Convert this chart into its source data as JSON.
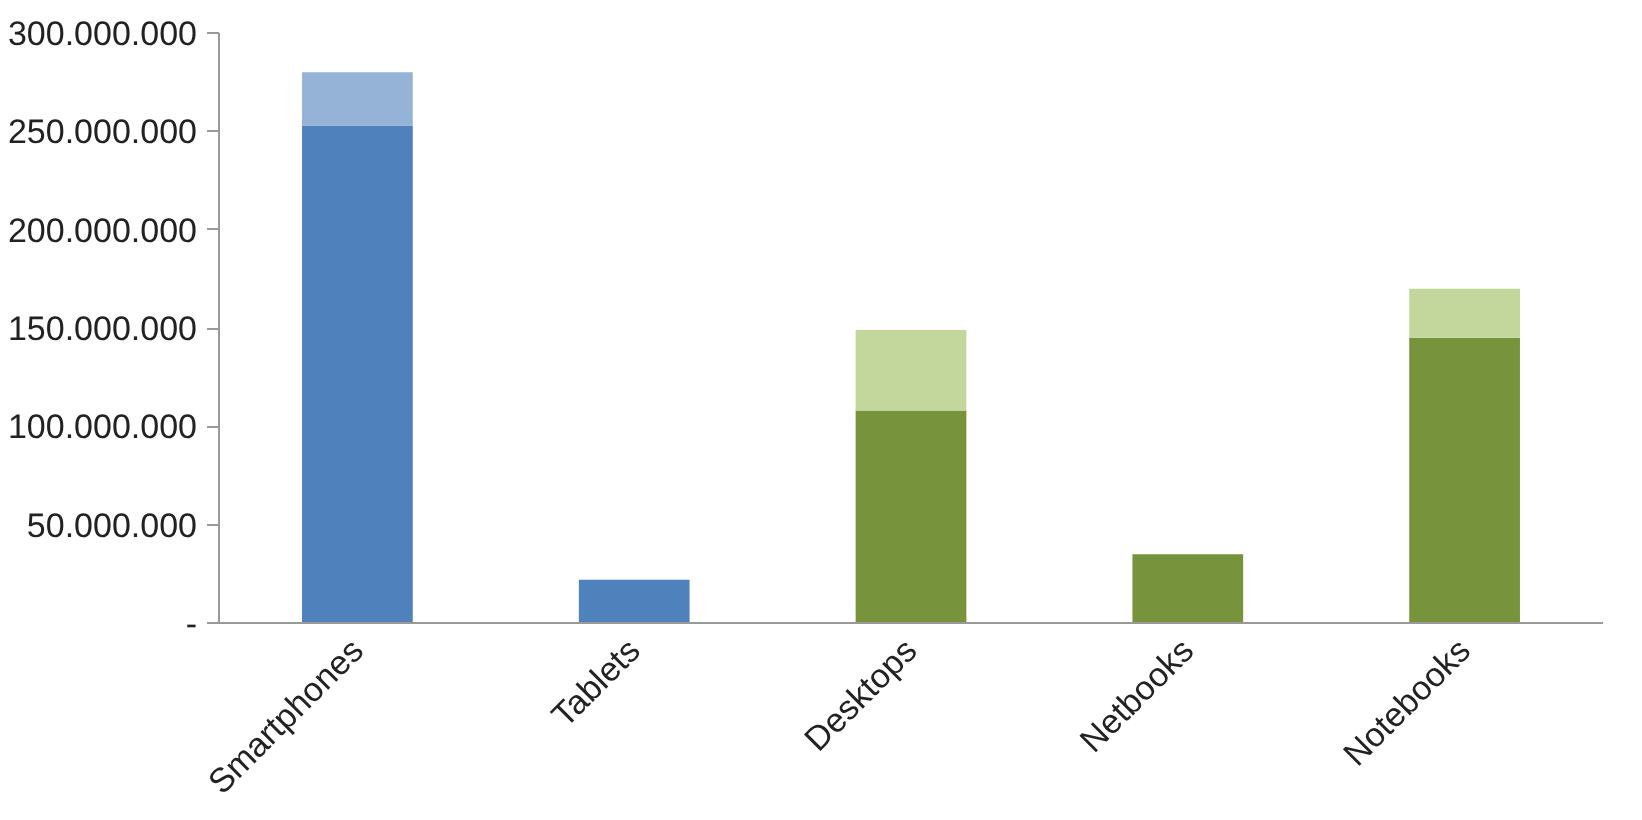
{
  "chart_data": {
    "type": "bar",
    "stacked": true,
    "categories": [
      "Smartphones",
      "Tablets",
      "Desktops",
      "Netbooks",
      "Notebooks"
    ],
    "series": [
      {
        "colors": [
          "#4f81bd",
          "#4f81bd",
          "#77933c",
          "#77933c",
          "#77933c"
        ],
        "values": [
          253000000,
          22000000,
          108000000,
          35000000,
          145000000
        ]
      },
      {
        "colors": [
          "#95b3d7",
          "#95b3d7",
          "#c3d69b",
          "#c3d69b",
          "#c3d69b"
        ],
        "values": [
          27000000,
          0,
          41000000,
          0,
          25000000
        ]
      }
    ],
    "ylim": [
      0,
      300000000
    ],
    "yticks": [
      {
        "value": 0,
        "label": "-"
      },
      {
        "value": 50000000,
        "label": "50.000.000"
      },
      {
        "value": 100000000,
        "label": "100.000.000"
      },
      {
        "value": 150000000,
        "label": "150.000.000"
      },
      {
        "value": 200000000,
        "label": "200.000.000"
      },
      {
        "value": 250000000,
        "label": "250.000.000"
      },
      {
        "value": 300000000,
        "label": "300.000.000"
      }
    ],
    "grid": false
  }
}
